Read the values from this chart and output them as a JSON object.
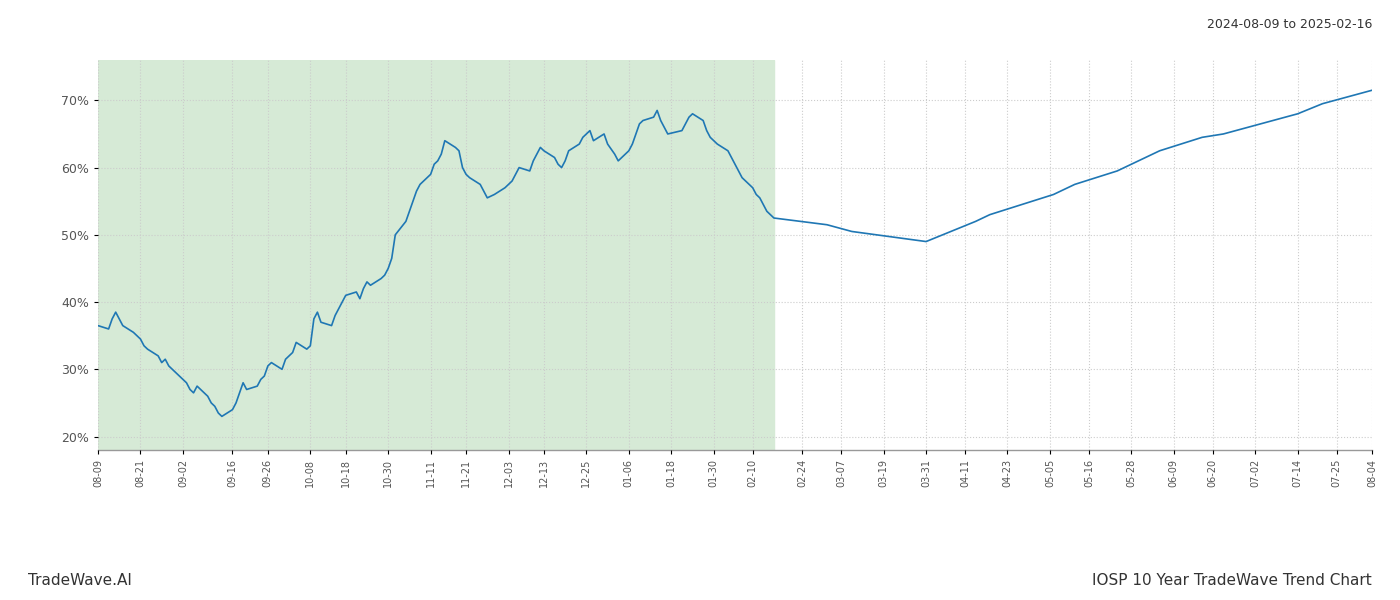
{
  "title_top_right": "2024-08-09 to 2025-02-16",
  "title_bottom_right": "IOSP 10 Year TradeWave Trend Chart",
  "title_bottom_left": "TradeWave.AI",
  "line_color": "#1f77b4",
  "background_color": "#ffffff",
  "shaded_region_color": "#d6ead6",
  "shaded_region_alpha": 0.5,
  "grid_color": "#cccccc",
  "grid_linestyle": ":",
  "ylim": [
    18,
    76
  ],
  "yticks": [
    20,
    30,
    40,
    50,
    60,
    70
  ],
  "ytick_labels": [
    "20%",
    "30%",
    "40%",
    "50%",
    "60%",
    "70%"
  ],
  "shaded_start_date": "2024-08-09",
  "shaded_end_date": "2025-02-16",
  "dates": [
    "2024-08-09",
    "2024-08-12",
    "2024-08-13",
    "2024-08-14",
    "2024-08-15",
    "2024-08-16",
    "2024-08-19",
    "2024-08-20",
    "2024-08-21",
    "2024-08-22",
    "2024-08-23",
    "2024-08-26",
    "2024-08-27",
    "2024-08-28",
    "2024-08-29",
    "2024-08-30",
    "2024-09-03",
    "2024-09-04",
    "2024-09-05",
    "2024-09-06",
    "2024-09-09",
    "2024-09-10",
    "2024-09-11",
    "2024-09-12",
    "2024-09-13",
    "2024-09-16",
    "2024-09-17",
    "2024-09-18",
    "2024-09-19",
    "2024-09-20",
    "2024-09-23",
    "2024-09-24",
    "2024-09-25",
    "2024-09-26",
    "2024-09-27",
    "2024-09-30",
    "2024-10-01",
    "2024-10-02",
    "2024-10-03",
    "2024-10-04",
    "2024-10-07",
    "2024-10-08",
    "2024-10-09",
    "2024-10-10",
    "2024-10-11",
    "2024-10-14",
    "2024-10-15",
    "2024-10-16",
    "2024-10-17",
    "2024-10-18",
    "2024-10-21",
    "2024-10-22",
    "2024-10-23",
    "2024-10-24",
    "2024-10-25",
    "2024-10-28",
    "2024-10-29",
    "2024-10-30",
    "2024-10-31",
    "2024-11-01",
    "2024-11-04",
    "2024-11-05",
    "2024-11-06",
    "2024-11-07",
    "2024-11-08",
    "2024-11-11",
    "2024-11-12",
    "2024-11-13",
    "2024-11-14",
    "2024-11-15",
    "2024-11-18",
    "2024-11-19",
    "2024-11-20",
    "2024-11-21",
    "2024-11-22",
    "2024-11-25",
    "2024-11-26",
    "2024-11-27",
    "2024-11-29",
    "2024-12-02",
    "2024-12-03",
    "2024-12-04",
    "2024-12-05",
    "2024-12-06",
    "2024-12-09",
    "2024-12-10",
    "2024-12-11",
    "2024-12-12",
    "2024-12-13",
    "2024-12-16",
    "2024-12-17",
    "2024-12-18",
    "2024-12-19",
    "2024-12-20",
    "2024-12-23",
    "2024-12-24",
    "2024-12-26",
    "2024-12-27",
    "2024-12-30",
    "2024-12-31",
    "2025-01-02",
    "2025-01-03",
    "2025-01-06",
    "2025-01-07",
    "2025-01-08",
    "2025-01-09",
    "2025-01-10",
    "2025-01-13",
    "2025-01-14",
    "2025-01-15",
    "2025-01-16",
    "2025-01-17",
    "2025-01-21",
    "2025-01-22",
    "2025-01-23",
    "2025-01-24",
    "2025-01-27",
    "2025-01-28",
    "2025-01-29",
    "2025-01-30",
    "2025-01-31",
    "2025-02-03",
    "2025-02-04",
    "2025-02-05",
    "2025-02-06",
    "2025-02-07",
    "2025-02-10",
    "2025-02-11",
    "2025-02-12",
    "2025-02-13",
    "2025-02-14",
    "2025-02-16",
    "2025-03-03",
    "2025-03-10",
    "2025-03-17",
    "2025-03-24",
    "2025-03-31",
    "2025-04-07",
    "2025-04-14",
    "2025-04-18",
    "2025-04-24",
    "2025-04-30",
    "2025-05-06",
    "2025-05-12",
    "2025-05-18",
    "2025-05-24",
    "2025-05-30",
    "2025-06-05",
    "2025-06-11",
    "2025-06-17",
    "2025-06-23",
    "2025-06-30",
    "2025-07-07",
    "2025-07-14",
    "2025-07-21",
    "2025-07-28",
    "2025-08-04"
  ],
  "values": [
    36.5,
    36.0,
    37.5,
    38.5,
    37.5,
    36.5,
    35.5,
    35.0,
    34.5,
    33.5,
    33.0,
    32.0,
    31.0,
    31.5,
    30.5,
    30.0,
    28.0,
    27.0,
    26.5,
    27.5,
    26.0,
    25.0,
    24.5,
    23.5,
    23.0,
    24.0,
    25.0,
    26.5,
    28.0,
    27.0,
    27.5,
    28.5,
    29.0,
    30.5,
    31.0,
    30.0,
    31.5,
    32.0,
    32.5,
    34.0,
    33.0,
    33.5,
    37.5,
    38.5,
    37.0,
    36.5,
    38.0,
    39.0,
    40.0,
    41.0,
    41.5,
    40.5,
    42.0,
    43.0,
    42.5,
    43.5,
    44.0,
    45.0,
    46.5,
    50.0,
    52.0,
    53.5,
    55.0,
    56.5,
    57.5,
    59.0,
    60.5,
    61.0,
    62.0,
    64.0,
    63.0,
    62.5,
    60.0,
    59.0,
    58.5,
    57.5,
    56.5,
    55.5,
    56.0,
    57.0,
    57.5,
    58.0,
    59.0,
    60.0,
    59.5,
    61.0,
    62.0,
    63.0,
    62.5,
    61.5,
    60.5,
    60.0,
    61.0,
    62.5,
    63.5,
    64.5,
    65.5,
    64.0,
    65.0,
    63.5,
    62.0,
    61.0,
    62.5,
    63.5,
    65.0,
    66.5,
    67.0,
    67.5,
    68.5,
    67.0,
    66.0,
    65.0,
    65.5,
    66.5,
    67.5,
    68.0,
    67.0,
    65.5,
    64.5,
    64.0,
    63.5,
    62.5,
    61.5,
    60.5,
    59.5,
    58.5,
    57.0,
    56.0,
    55.5,
    54.5,
    53.5,
    52.5,
    51.5,
    50.5,
    50.0,
    49.5,
    49.0,
    50.5,
    52.0,
    53.0,
    54.0,
    55.0,
    56.0,
    57.5,
    58.5,
    59.5,
    61.0,
    62.5,
    63.5,
    64.5,
    65.0,
    66.0,
    67.0,
    68.0,
    69.5,
    70.5,
    71.5
  ],
  "xtick_dates": [
    "2024-08-09",
    "2024-08-21",
    "2024-09-02",
    "2024-09-16",
    "2024-09-26",
    "2024-10-08",
    "2024-10-18",
    "2024-10-30",
    "2024-11-11",
    "2024-11-21",
    "2024-12-03",
    "2024-12-13",
    "2024-12-25",
    "2025-01-06",
    "2025-01-18",
    "2025-01-30",
    "2025-02-10",
    "2025-02-24",
    "2025-03-07",
    "2025-03-19",
    "2025-03-31",
    "2025-04-11",
    "2025-04-23",
    "2025-05-05",
    "2025-05-16",
    "2025-05-28",
    "2025-06-09",
    "2025-06-20",
    "2025-07-02",
    "2025-07-14",
    "2025-07-25",
    "2025-08-04"
  ],
  "xtick_labels": [
    "08-09",
    "08-21",
    "09-02",
    "09-16",
    "09-26",
    "10-08",
    "10-18",
    "10-30",
    "11-11",
    "11-21",
    "12-03",
    "12-13",
    "12-25",
    "01-06",
    "01-18",
    "01-30",
    "02-10",
    "02-24",
    "03-07",
    "03-19",
    "03-31",
    "04-11",
    "04-23",
    "05-05",
    "05-16",
    "05-28",
    "06-09",
    "06-20",
    "07-02",
    "07-14",
    "07-25",
    "08-04"
  ]
}
